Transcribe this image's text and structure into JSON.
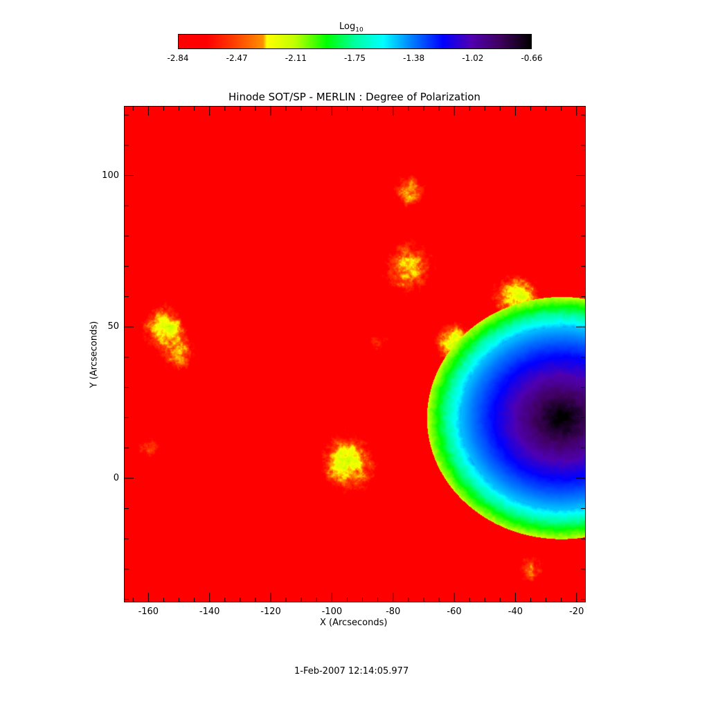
{
  "chart_data": {
    "type": "heatmap",
    "title": "Hinode SOT/SP - MERLIN : Degree of Polarization",
    "xlabel": "X (Arcseconds)",
    "ylabel": "Y (Arcseconds)",
    "xlim": [
      -168,
      -17
    ],
    "ylim": [
      -41,
      123
    ],
    "xticks": [
      "-160",
      "-140",
      "-120",
      "-100",
      "-80",
      "-60",
      "-40",
      "-20"
    ],
    "xtick_values": [
      -160,
      -140,
      -120,
      -100,
      -80,
      -60,
      -40,
      -20
    ],
    "yticks": [
      "0",
      "50",
      "100"
    ],
    "ytick_values": [
      0,
      50,
      100
    ],
    "colorbar": {
      "label_base": "Log",
      "label_sub": "10",
      "range": [
        -2.84,
        -0.66
      ],
      "ticks": [
        "-2.84",
        "-2.47",
        "-2.11",
        "-1.75",
        "-1.38",
        "-1.02",
        "-0.66"
      ],
      "colormap": "rainbow (red-yellow-green-cyan-blue-purple-black)"
    },
    "footer": "1-Feb-2007 12:14:05.977"
  }
}
